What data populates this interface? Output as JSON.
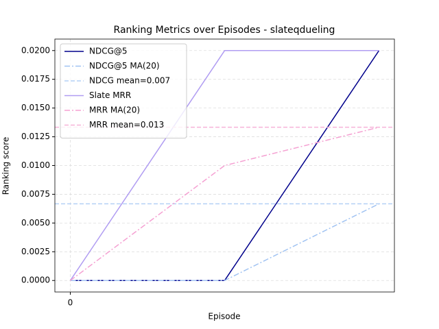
{
  "chart_data": {
    "type": "line",
    "title": "Ranking Metrics over Episodes - slateqdueling",
    "x_label": "Episode",
    "y_label": "Ranking score",
    "x": [
      0,
      1,
      2
    ],
    "xlim": [
      -0.1,
      2.1
    ],
    "xticks": [
      0
    ],
    "ylim": [
      -0.001,
      0.021
    ],
    "yticks": [
      {
        "value": 0,
        "label": "0.0000"
      },
      {
        "value": 0.0025,
        "label": "0.0025"
      },
      {
        "value": 0.005,
        "label": "0.0050"
      },
      {
        "value": 0.0075,
        "label": "0.0075"
      },
      {
        "value": 0.01,
        "label": "0.0100"
      },
      {
        "value": 0.0125,
        "label": "0.0125"
      },
      {
        "value": 0.015,
        "label": "0.0150"
      },
      {
        "value": 0.0175,
        "label": "0.0175"
      },
      {
        "value": 0.02,
        "label": "0.0200"
      }
    ],
    "grid": true,
    "legend": "upper left",
    "series": [
      {
        "name": "NDCG@5",
        "color": "#00008b",
        "dash": "solid",
        "values": [
          0,
          0,
          0.02
        ]
      },
      {
        "name": "NDCG@5 MA(20)",
        "color": "#9fc2f2",
        "dash": "dashdot",
        "values": [
          0,
          0,
          0.00667
        ]
      },
      {
        "name": "NDCG mean=0.007",
        "color": "#b3d0f5",
        "dash": "dashed",
        "hline": 0.00667
      },
      {
        "name": "Slate MRR",
        "color": "#b09cf2",
        "dash": "solid",
        "values": [
          0,
          0.02,
          0.02
        ]
      },
      {
        "name": "MRR MA(20)",
        "color": "#f5a0d2",
        "dash": "dashdot",
        "values": [
          0,
          0.01,
          0.01333
        ]
      },
      {
        "name": "MRR mean=0.013",
        "color": "#f7b2d8",
        "dash": "dashed",
        "hline": 0.01333
      }
    ]
  }
}
